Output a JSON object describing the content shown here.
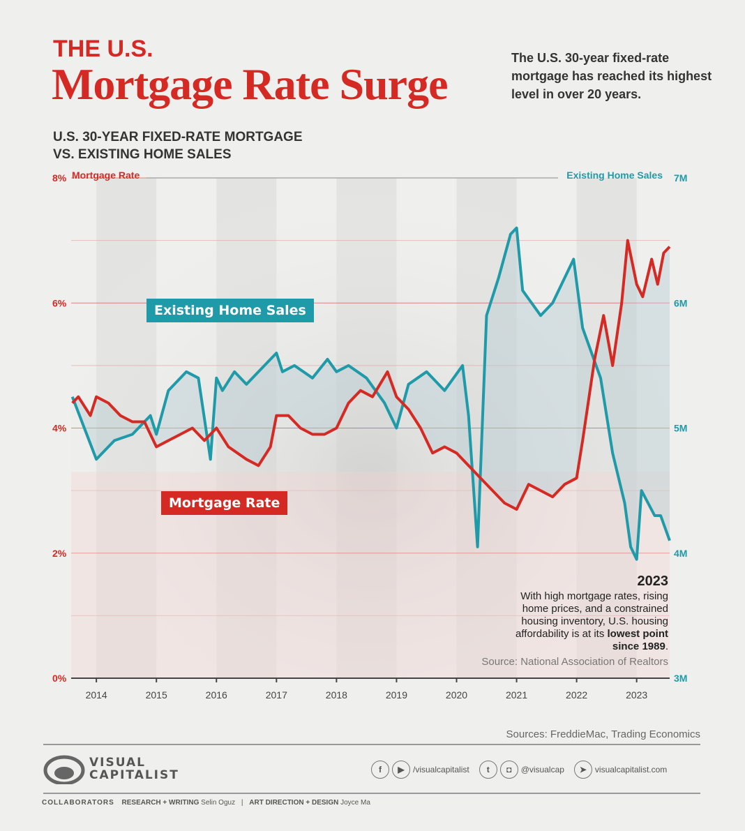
{
  "header": {
    "kicker": "THE U.S.",
    "title": "Mortgage Rate Surge",
    "intro": "The U.S. 30-year fixed-rate mortgage has reached its highest level in over 20 years.",
    "subtitle_line1": "U.S. 30-YEAR FIXED-RATE MORTGAGE",
    "subtitle_line2": "VS. EXISTING HOME SALES"
  },
  "colors": {
    "mortgage": "#d52a23",
    "sales": "#1f9aa8",
    "background": "#efefed"
  },
  "chart_data": {
    "type": "line",
    "x_ticks": [
      "2014",
      "2015",
      "2016",
      "2017",
      "2018",
      "2019",
      "2020",
      "2021",
      "2022",
      "2023"
    ],
    "xlim": [
      2013.58,
      2023.55
    ],
    "left_axis": {
      "label": "Mortgage Rate",
      "ticks": [
        "0%",
        "2%",
        "4%",
        "6%",
        "8%"
      ],
      "ylim": [
        0,
        8
      ]
    },
    "right_axis": {
      "label": "Existing Home Sales",
      "ticks": [
        "3M",
        "4M",
        "5M",
        "6M",
        "7M"
      ],
      "ylim": [
        3,
        7
      ]
    },
    "series": [
      {
        "name": "Mortgage Rate",
        "axis": "left",
        "x": [
          2013.6,
          2013.7,
          2013.9,
          2014.0,
          2014.2,
          2014.4,
          2014.6,
          2014.8,
          2015.0,
          2015.2,
          2015.4,
          2015.6,
          2015.8,
          2016.0,
          2016.2,
          2016.5,
          2016.7,
          2016.9,
          2017.0,
          2017.2,
          2017.4,
          2017.6,
          2017.8,
          2018.0,
          2018.2,
          2018.4,
          2018.6,
          2018.85,
          2019.0,
          2019.2,
          2019.4,
          2019.6,
          2019.8,
          2020.0,
          2020.2,
          2020.4,
          2020.6,
          2020.8,
          2021.0,
          2021.2,
          2021.4,
          2021.6,
          2021.8,
          2022.0,
          2022.1,
          2022.3,
          2022.45,
          2022.6,
          2022.75,
          2022.85,
          2023.0,
          2023.1,
          2023.25,
          2023.35,
          2023.45,
          2023.55
        ],
        "values": [
          4.4,
          4.5,
          4.2,
          4.5,
          4.4,
          4.2,
          4.1,
          4.1,
          3.7,
          3.8,
          3.9,
          4.0,
          3.8,
          4.0,
          3.7,
          3.5,
          3.4,
          3.7,
          4.2,
          4.2,
          4.0,
          3.9,
          3.9,
          4.0,
          4.4,
          4.6,
          4.5,
          4.9,
          4.5,
          4.3,
          4.0,
          3.6,
          3.7,
          3.6,
          3.4,
          3.2,
          3.0,
          2.8,
          2.7,
          3.1,
          3.0,
          2.9,
          3.1,
          3.2,
          3.8,
          5.1,
          5.8,
          5.0,
          6.0,
          7.0,
          6.3,
          6.1,
          6.7,
          6.3,
          6.8,
          6.9
        ]
      },
      {
        "name": "Existing Home Sales",
        "axis": "right",
        "x": [
          2013.6,
          2013.8,
          2014.0,
          2014.3,
          2014.6,
          2014.9,
          2015.0,
          2015.2,
          2015.5,
          2015.7,
          2015.9,
          2016.0,
          2016.1,
          2016.3,
          2016.5,
          2016.8,
          2017.0,
          2017.1,
          2017.3,
          2017.6,
          2017.85,
          2018.0,
          2018.2,
          2018.5,
          2018.8,
          2019.0,
          2019.2,
          2019.5,
          2019.8,
          2020.1,
          2020.2,
          2020.35,
          2020.5,
          2020.7,
          2020.9,
          2021.0,
          2021.1,
          2021.4,
          2021.6,
          2021.8,
          2021.95,
          2022.1,
          2022.4,
          2022.6,
          2022.8,
          2022.9,
          2023.0,
          2023.08,
          2023.3,
          2023.4,
          2023.55
        ],
        "values": [
          5.25,
          5.0,
          4.75,
          4.9,
          4.95,
          5.1,
          4.95,
          5.3,
          5.45,
          5.4,
          4.75,
          5.4,
          5.3,
          5.45,
          5.35,
          5.5,
          5.6,
          5.45,
          5.5,
          5.4,
          5.55,
          5.45,
          5.5,
          5.4,
          5.2,
          5.0,
          5.35,
          5.45,
          5.3,
          5.5,
          5.1,
          4.05,
          5.9,
          6.2,
          6.55,
          6.6,
          6.1,
          5.9,
          6.0,
          6.2,
          6.35,
          5.8,
          5.4,
          4.8,
          4.4,
          4.05,
          3.95,
          4.5,
          4.3,
          4.3,
          4.1
        ]
      }
    ],
    "callouts": {
      "sales": "Existing Home Sales",
      "mortgage": "Mortgage Rate"
    },
    "grid": true
  },
  "note": {
    "year": "2023",
    "text_before": "With high mortgage rates, rising home prices, and a constrained housing inventory, U.S. housing affordability is at its ",
    "bold": "lowest point since 1989",
    "text_after": ".",
    "source": "Source: National Association of Realtors"
  },
  "footer": {
    "sources": "Sources: FreddieMac, Trading Economics",
    "logo_line1": "VISUAL",
    "logo_line2": "CAPITALIST",
    "social_fb_yt": "/visualcapitalist",
    "social_tw_ig": "@visualcap",
    "website": "visualcapitalist.com",
    "collab_label": "COLLABORATORS",
    "research_label": "RESEARCH + WRITING",
    "research_name": "Selin Oguz",
    "sep": "|",
    "design_label": "ART DIRECTION + DESIGN",
    "design_name": "Joyce Ma"
  }
}
